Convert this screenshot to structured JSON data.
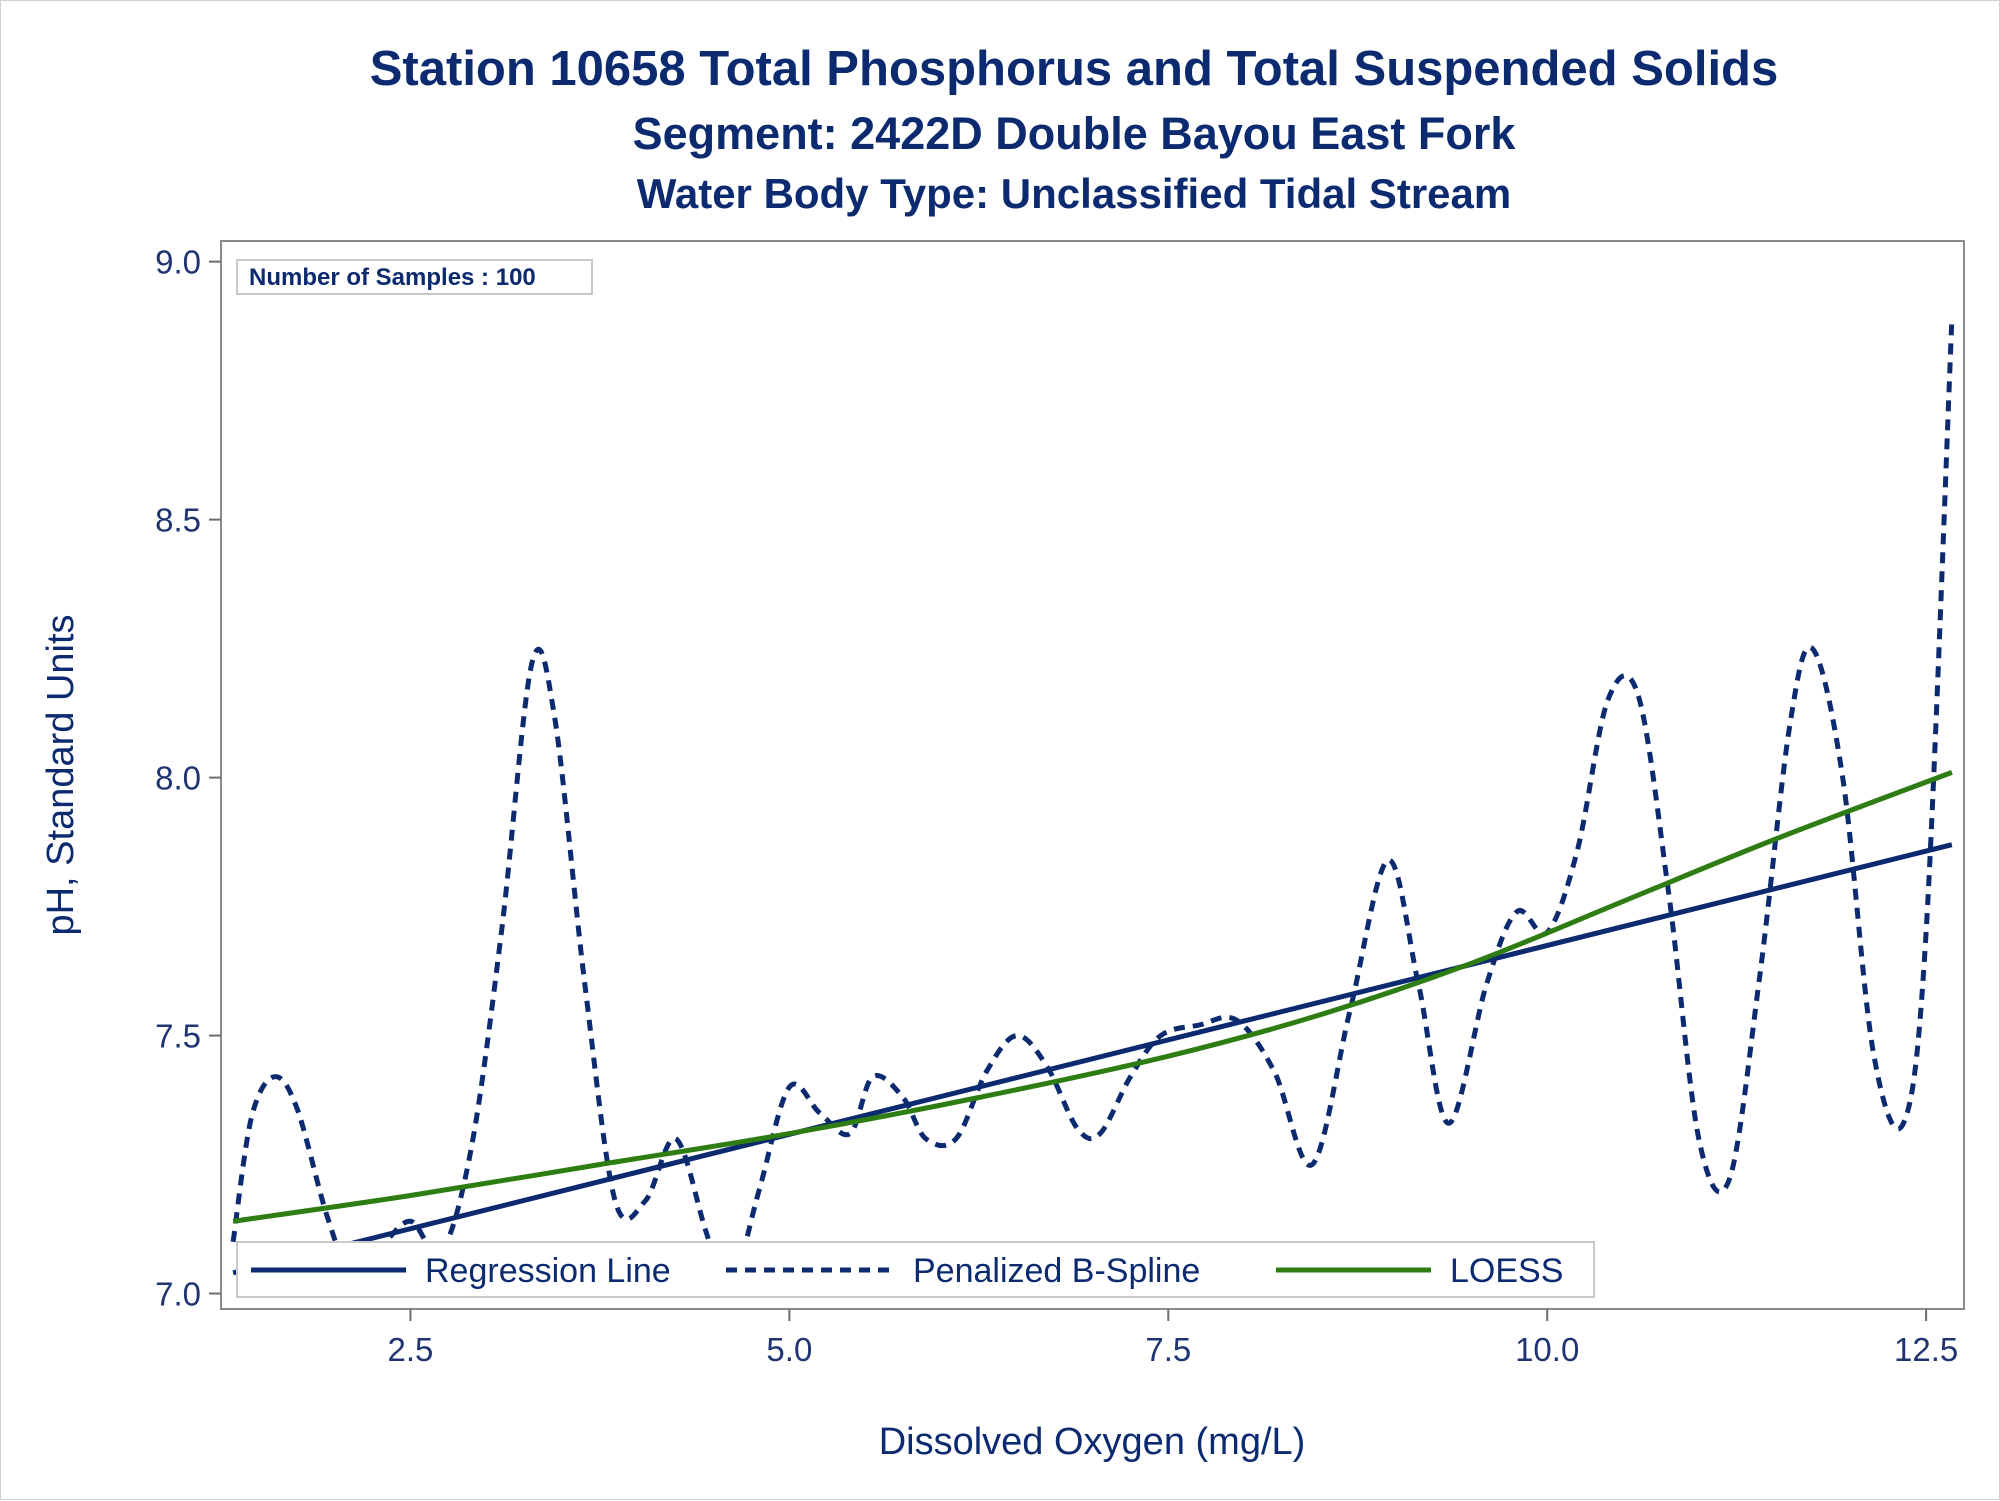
{
  "chart_data": {
    "type": "line",
    "title": "Station 10658  Total Phosphorus and Total Suspended Solids",
    "subtitle": "Segment: 2422D  Double Bayou East Fork",
    "subtitle2": "Water Body Type: Unclassified Tidal Stream",
    "xlabel": "Dissolved Oxygen (mg/L)",
    "ylabel": "pH, Standard Units",
    "xlim": [
      1.25,
      12.75
    ],
    "ylim": [
      6.97,
      9.04
    ],
    "x_ticks": [
      2.5,
      5.0,
      7.5,
      10.0,
      12.5
    ],
    "x_tick_labels": [
      "2.5",
      "5.0",
      "7.5",
      "10.0",
      "12.5"
    ],
    "y_ticks": [
      7.0,
      7.5,
      8.0,
      8.5,
      9.0
    ],
    "y_tick_labels": [
      "7.0",
      "7.5",
      "8.0",
      "8.5",
      "9.0"
    ],
    "grid": false,
    "annotation": "Number of Samples : 100",
    "legend_position": "bottom-left",
    "series": [
      {
        "name": "Regression Line",
        "style": "solid",
        "color": "#0b2a6f",
        "x": [
          1.33,
          12.67
        ],
        "y": [
          7.04,
          7.87
        ]
      },
      {
        "name": "Penalized B-Spline",
        "style": "dashed",
        "color": "#0b2a6f",
        "x": [
          1.33,
          1.45,
          1.6,
          1.75,
          1.95,
          2.1,
          2.3,
          2.5,
          2.7,
          2.9,
          3.1,
          3.3,
          3.45,
          3.65,
          3.85,
          4.05,
          4.25,
          4.45,
          4.6,
          4.8,
          5.0,
          5.2,
          5.4,
          5.55,
          5.75,
          5.9,
          6.1,
          6.3,
          6.5,
          6.7,
          6.9,
          7.05,
          7.25,
          7.45,
          7.7,
          7.95,
          8.2,
          8.45,
          8.7,
          8.95,
          9.15,
          9.35,
          9.6,
          9.8,
          10.0,
          10.2,
          10.4,
          10.6,
          10.8,
          11.0,
          11.2,
          11.4,
          11.6,
          11.75,
          11.95,
          12.15,
          12.35,
          12.5,
          12.67
        ],
        "y": [
          7.1,
          7.34,
          7.42,
          7.36,
          7.15,
          7.05,
          7.09,
          7.14,
          7.08,
          7.28,
          7.7,
          8.22,
          8.12,
          7.6,
          7.18,
          7.18,
          7.3,
          7.12,
          7.0,
          7.2,
          7.4,
          7.35,
          7.31,
          7.42,
          7.38,
          7.3,
          7.3,
          7.43,
          7.5,
          7.44,
          7.32,
          7.31,
          7.42,
          7.5,
          7.52,
          7.53,
          7.43,
          7.25,
          7.55,
          7.84,
          7.6,
          7.33,
          7.6,
          7.74,
          7.7,
          7.86,
          8.15,
          8.16,
          7.78,
          7.3,
          7.22,
          7.61,
          8.1,
          8.25,
          8.0,
          7.47,
          7.33,
          7.7,
          8.89
        ]
      },
      {
        "name": "LOESS",
        "style": "solid",
        "color": "#2d7d13",
        "x": [
          1.33,
          2.5,
          3.75,
          5.0,
          6.25,
          7.5,
          8.5,
          9.5,
          10.5,
          11.5,
          12.67
        ],
        "y": [
          7.14,
          7.19,
          7.25,
          7.31,
          7.38,
          7.46,
          7.54,
          7.64,
          7.76,
          7.88,
          8.01
        ]
      }
    ]
  }
}
